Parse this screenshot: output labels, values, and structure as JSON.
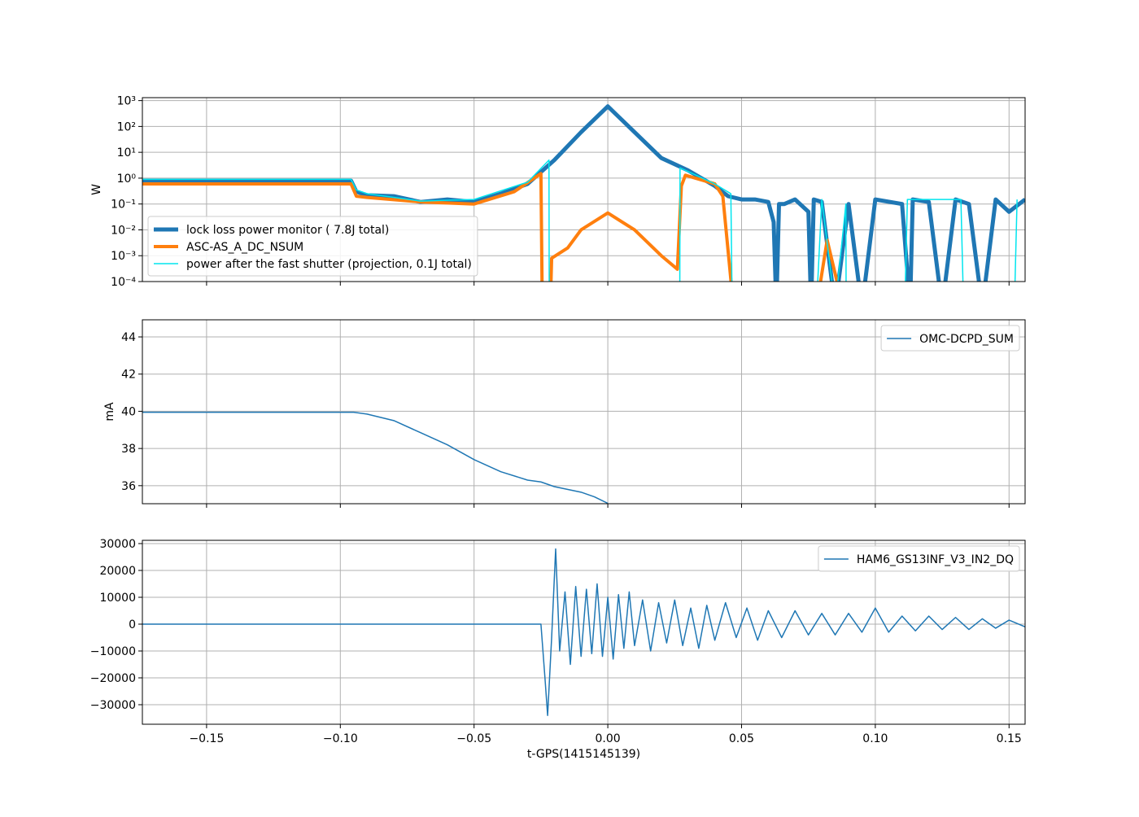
{
  "chart_data": [
    {
      "type": "line",
      "ylabel": "W",
      "log_y": true,
      "grid": true,
      "legend": "lower left",
      "xlim": [
        -0.174,
        0.156
      ],
      "xticks": [
        -0.15,
        -0.1,
        -0.05,
        0,
        0.05,
        0.1,
        0.15
      ],
      "ylim": [
        0.0001,
        1300
      ],
      "yticks": [
        {
          "value": 0.0001,
          "label": "10⁻⁴"
        },
        {
          "value": 0.001,
          "label": "10⁻³"
        },
        {
          "value": 0.01,
          "label": "10⁻²"
        },
        {
          "value": 0.1,
          "label": "10⁻¹"
        },
        {
          "value": 1,
          "label": "10⁰"
        },
        {
          "value": 10,
          "label": "10¹"
        },
        {
          "value": 100,
          "label": "10²"
        },
        {
          "value": 1000,
          "label": "10³"
        }
      ],
      "series": [
        {
          "name": "lock loss power monitor (  7.8J total)",
          "color": "#1f77b4",
          "linewidth": 5,
          "x": [
            -0.174,
            -0.15,
            -0.12,
            -0.096,
            -0.094,
            -0.09,
            -0.08,
            -0.07,
            -0.06,
            -0.05,
            -0.04,
            -0.03,
            -0.02,
            -0.01,
            0,
            0.01,
            0.02,
            0.03,
            0.04,
            0.045,
            0.05,
            0.055,
            0.06,
            0.062,
            0.063,
            0.064,
            0.066,
            0.07,
            0.075,
            0.076,
            0.077,
            0.08,
            0.085,
            0.09,
            0.095,
            0.1,
            0.11,
            0.113,
            0.114,
            0.12,
            0.125,
            0.13,
            0.135,
            0.14,
            0.145,
            0.15,
            0.156
          ],
          "values": [
            0.8,
            0.8,
            0.8,
            0.8,
            0.3,
            0.22,
            0.2,
            0.12,
            0.15,
            0.12,
            0.25,
            0.6,
            5,
            60,
            600,
            60,
            6,
            2,
            0.5,
            0.2,
            0.15,
            0.15,
            0.12,
            0.02,
            1e-05,
            0.1,
            0.1,
            0.15,
            0.05,
            1e-05,
            0.15,
            0.12,
            1e-05,
            0.1,
            1e-05,
            0.15,
            0.1,
            1e-05,
            0.15,
            0.12,
            1e-05,
            0.15,
            0.1,
            1e-05,
            0.15,
            0.05,
            0.15
          ]
        },
        {
          "name": "ASC-AS_A_DC_NSUM",
          "color": "#ff7f0e",
          "linewidth": 4,
          "x": [
            -0.174,
            -0.096,
            -0.094,
            -0.09,
            -0.07,
            -0.05,
            -0.035,
            -0.025,
            -0.0245,
            -0.0215,
            -0.021,
            -0.015,
            -0.01,
            0,
            0.01,
            0.02,
            0.026,
            0.0275,
            0.029,
            0.04,
            0.043,
            0.047,
            0.078,
            0.082,
            0.088
          ],
          "values": [
            0.6,
            0.6,
            0.2,
            0.18,
            0.12,
            0.1,
            0.3,
            1.5,
            1e-05,
            1e-05,
            0.0008,
            0.002,
            0.01,
            0.045,
            0.01,
            0.001,
            0.0003,
            0.5,
            1.3,
            0.6,
            0.2,
            1e-05,
            1e-05,
            0.004,
            1e-05
          ]
        },
        {
          "name": "power after the fast shutter (projection,  0.1J total)",
          "color": "#00e5ee",
          "linewidth": 1.5,
          "x": [
            -0.174,
            -0.096,
            -0.094,
            -0.09,
            -0.07,
            -0.05,
            -0.03,
            -0.022,
            -0.0219,
            0.0269,
            0.027,
            0.04,
            0.046,
            0.0465,
            0.078,
            0.08,
            0.085,
            0.089,
            0.0891,
            0.111,
            0.112,
            0.132,
            0.133,
            0.152,
            0.153
          ],
          "values": [
            0.9,
            0.9,
            0.35,
            0.25,
            0.13,
            0.15,
            0.7,
            5,
            1e-05,
            1e-05,
            2.5,
            0.6,
            0.25,
            1e-05,
            1e-05,
            0.15,
            1e-05,
            0.1,
            1e-05,
            1e-05,
            0.15,
            0.15,
            1e-05,
            1e-05,
            0.15
          ]
        }
      ]
    },
    {
      "type": "line",
      "ylabel": "mA",
      "grid": true,
      "legend": "upper right",
      "xlim": [
        -0.174,
        0.156
      ],
      "xticks": [
        -0.15,
        -0.1,
        -0.05,
        0,
        0.05,
        0.1,
        0.15
      ],
      "ylim": [
        35.03,
        44.92
      ],
      "yticks": [
        36,
        38,
        40,
        42,
        44
      ],
      "series": [
        {
          "name": "OMC-DCPD_SUM",
          "color": "#1f77b4",
          "linewidth": 1.5,
          "x": [
            -0.174,
            -0.095,
            -0.09,
            -0.08,
            -0.07,
            -0.06,
            -0.05,
            -0.04,
            -0.03,
            -0.025,
            -0.02,
            -0.01,
            -0.005,
            0
          ],
          "values": [
            39.95,
            39.95,
            39.85,
            39.5,
            38.85,
            38.2,
            37.4,
            36.75,
            36.3,
            36.2,
            35.95,
            35.65,
            35.4,
            35.05
          ]
        }
      ]
    },
    {
      "type": "line",
      "xlabel": "t-GPS(1415145139)",
      "grid": true,
      "legend": "upper right",
      "xlim": [
        -0.174,
        0.156
      ],
      "xticks": [
        {
          "value": -0.15,
          "label": "−0.15"
        },
        {
          "value": -0.1,
          "label": "−0.10"
        },
        {
          "value": -0.05,
          "label": "−0.05"
        },
        {
          "value": 0,
          "label": "0.00"
        },
        {
          "value": 0.05,
          "label": "0.05"
        },
        {
          "value": 0.1,
          "label": "0.10"
        },
        {
          "value": 0.15,
          "label": "0.15"
        }
      ],
      "ylim": [
        -37270,
        31210
      ],
      "yticks": [
        {
          "value": -30000,
          "label": "−30000"
        },
        {
          "value": -20000,
          "label": "−20000"
        },
        {
          "value": -10000,
          "label": "−10000"
        },
        0,
        10000,
        20000,
        30000
      ],
      "series": [
        {
          "name": "HAM6_GS13INF_V3_IN2_DQ",
          "color": "#1f77b4",
          "linewidth": 1.5,
          "x": [
            -0.174,
            -0.025,
            -0.0235,
            -0.0225,
            -0.021,
            -0.0195,
            -0.018,
            -0.016,
            -0.014,
            -0.012,
            -0.01,
            -0.008,
            -0.006,
            -0.004,
            -0.002,
            0,
            0.002,
            0.004,
            0.006,
            0.008,
            0.01,
            0.013,
            0.016,
            0.019,
            0.022,
            0.025,
            0.028,
            0.031,
            0.034,
            0.037,
            0.04,
            0.044,
            0.048,
            0.052,
            0.056,
            0.06,
            0.065,
            0.07,
            0.075,
            0.08,
            0.085,
            0.09,
            0.095,
            0.1,
            0.105,
            0.11,
            0.115,
            0.12,
            0.125,
            0.13,
            0.135,
            0.14,
            0.145,
            0.15,
            0.156
          ],
          "values": [
            0,
            0,
            -20000,
            -34000,
            -5000,
            28000,
            -10000,
            12000,
            -15000,
            14000,
            -12000,
            13000,
            -11000,
            15000,
            -12000,
            10000,
            -13000,
            11000,
            -9000,
            12000,
            -8000,
            9000,
            -10000,
            8000,
            -7000,
            9000,
            -8000,
            6000,
            -9000,
            7000,
            -6000,
            8000,
            -5000,
            6000,
            -6000,
            5000,
            -5000,
            5000,
            -4000,
            4000,
            -4000,
            4000,
            -3000,
            6000,
            -3000,
            3000,
            -2500,
            3000,
            -2000,
            2500,
            -2000,
            2000,
            -1500,
            1500,
            -1000
          ]
        }
      ]
    }
  ]
}
